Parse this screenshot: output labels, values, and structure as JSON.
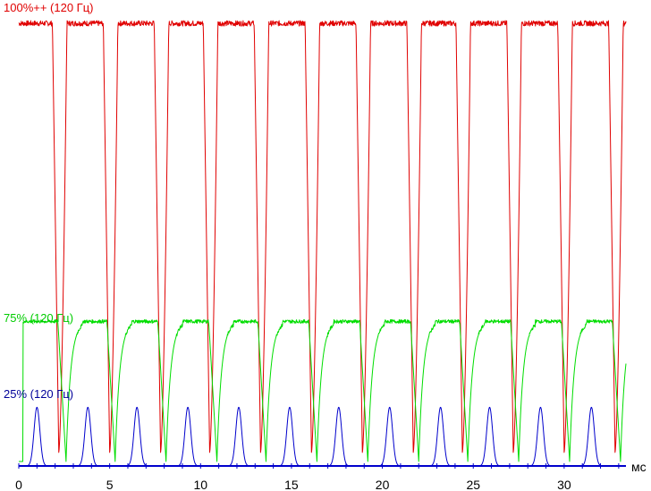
{
  "chart_data": {
    "type": "line",
    "title": "",
    "xlabel": "мс",
    "ylabel": "",
    "xlim": [
      0,
      33.4
    ],
    "ylim": [
      0,
      100
    ],
    "x_ticks": [
      0,
      5,
      10,
      15,
      20,
      25,
      30
    ],
    "grid": false,
    "legend": "inline-left",
    "period_ms": 2.78,
    "series": [
      {
        "name": "100%++ (120 Гц)",
        "color": "#e00000",
        "shape": "high-with-downward-spikes",
        "high_level": 98,
        "dip_level": 3,
        "dip_times_ms": [
          2.2,
          5.0,
          7.8,
          10.5,
          13.3,
          16.1,
          18.9,
          21.7,
          24.4,
          27.2,
          30.0,
          32.8
        ]
      },
      {
        "name": "75% (120 Гц)",
        "color": "#00dd00",
        "shape": "plateau-with-drops",
        "high_level": 32,
        "dip_level": 1,
        "dip_times_ms": [
          2.6,
          5.3,
          8.1,
          10.9,
          13.6,
          16.4,
          19.2,
          22.0,
          24.7,
          27.5,
          30.3,
          33.1
        ]
      },
      {
        "name": "25% (120 Гц)",
        "color": "#0000cc",
        "shape": "baseline-with-peaks",
        "baseline": 0,
        "peak_level": 13,
        "peak_times_ms": [
          1.0,
          3.8,
          6.5,
          9.3,
          12.1,
          14.9,
          17.6,
          20.4,
          23.2,
          25.9,
          28.7,
          31.5
        ]
      }
    ]
  }
}
